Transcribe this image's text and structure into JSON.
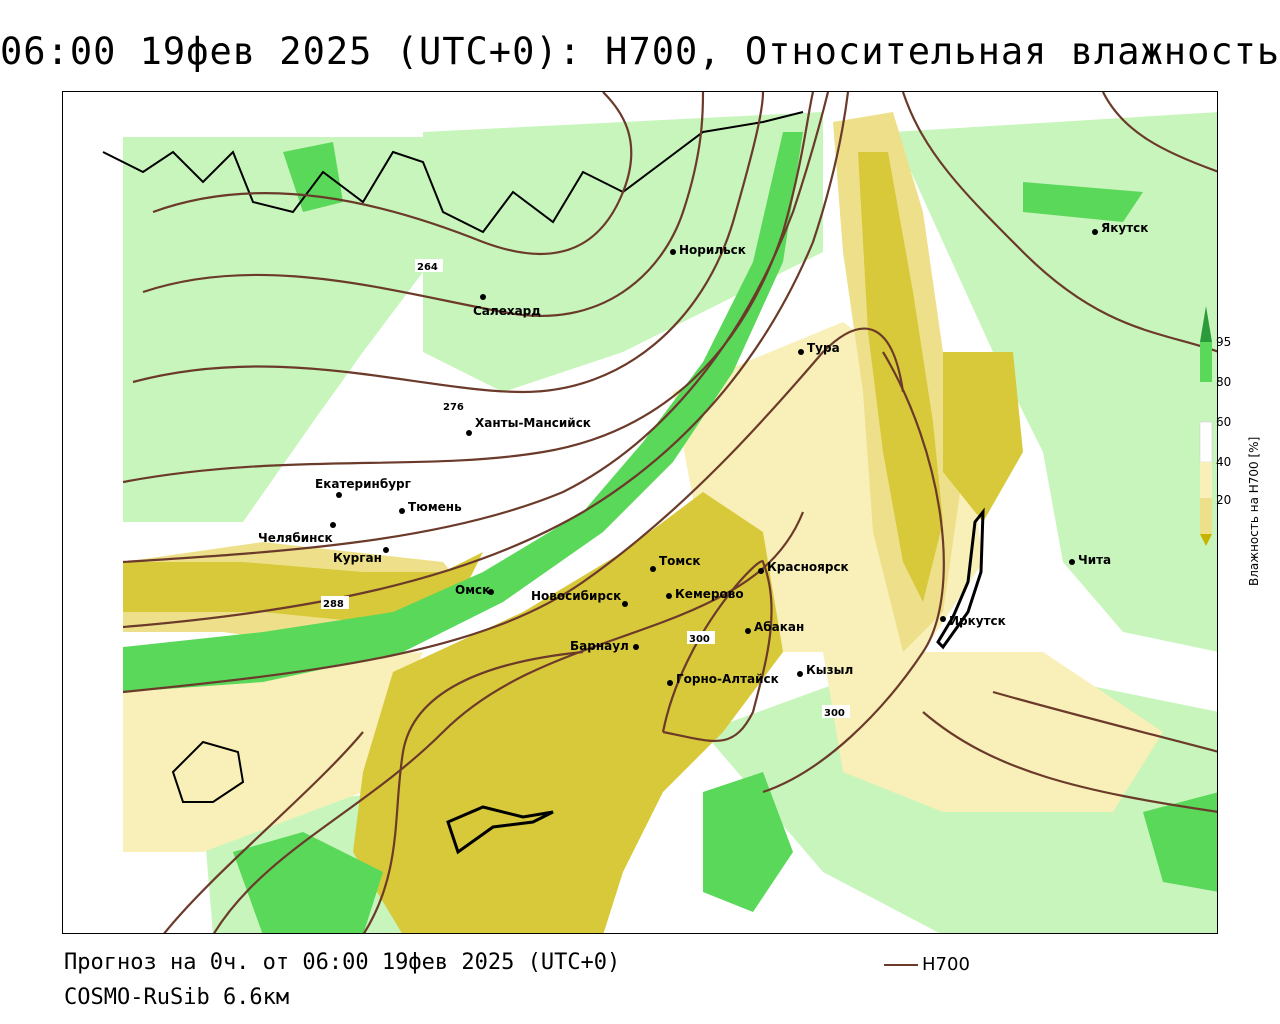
{
  "title": "06:00 19фев 2025 (UTC+0): H700, Относительная влажность",
  "footer": {
    "forecast": "Прогноз на 0ч. от 06:00 19фев 2025 (UTC+0)",
    "model": "COSMO-RuSib 6.6км"
  },
  "line_legend": {
    "label": "H700",
    "color": "#6b3a2a"
  },
  "colorbar": {
    "title": "Влажность на H700 [%]",
    "ticks": [
      "20",
      "40",
      "60",
      "80",
      "95"
    ],
    "colors": {
      "very_dry": "#c8b400",
      "dry": "#d8c93a",
      "medium_dry": "#eee08a",
      "light_dry": "#f8f0b8",
      "neutral": "#ffffff",
      "light_green": "#c8f5bc",
      "green": "#5ad85a",
      "dark_green": "#2a9a3a"
    }
  },
  "cities": [
    {
      "name": "Якутск"
    },
    {
      "name": "Норильск"
    },
    {
      "name": "Салехард"
    },
    {
      "name": "Тура"
    },
    {
      "name": "Ханты-Мансийск"
    },
    {
      "name": "Екатеринбург"
    },
    {
      "name": "Тюмень"
    },
    {
      "name": "Челябинск"
    },
    {
      "name": "Курган"
    },
    {
      "name": "Омск"
    },
    {
      "name": "Новосибирск"
    },
    {
      "name": "Томск"
    },
    {
      "name": "Кемерово"
    },
    {
      "name": "Красноярск"
    },
    {
      "name": "Абакан"
    },
    {
      "name": "Барнаул"
    },
    {
      "name": "Горно-Алтайск"
    },
    {
      "name": "Кызыл"
    },
    {
      "name": "Иркутск"
    },
    {
      "name": "Чита"
    }
  ],
  "contour_labels": [
    "264",
    "276",
    "288",
    "300",
    "300"
  ]
}
